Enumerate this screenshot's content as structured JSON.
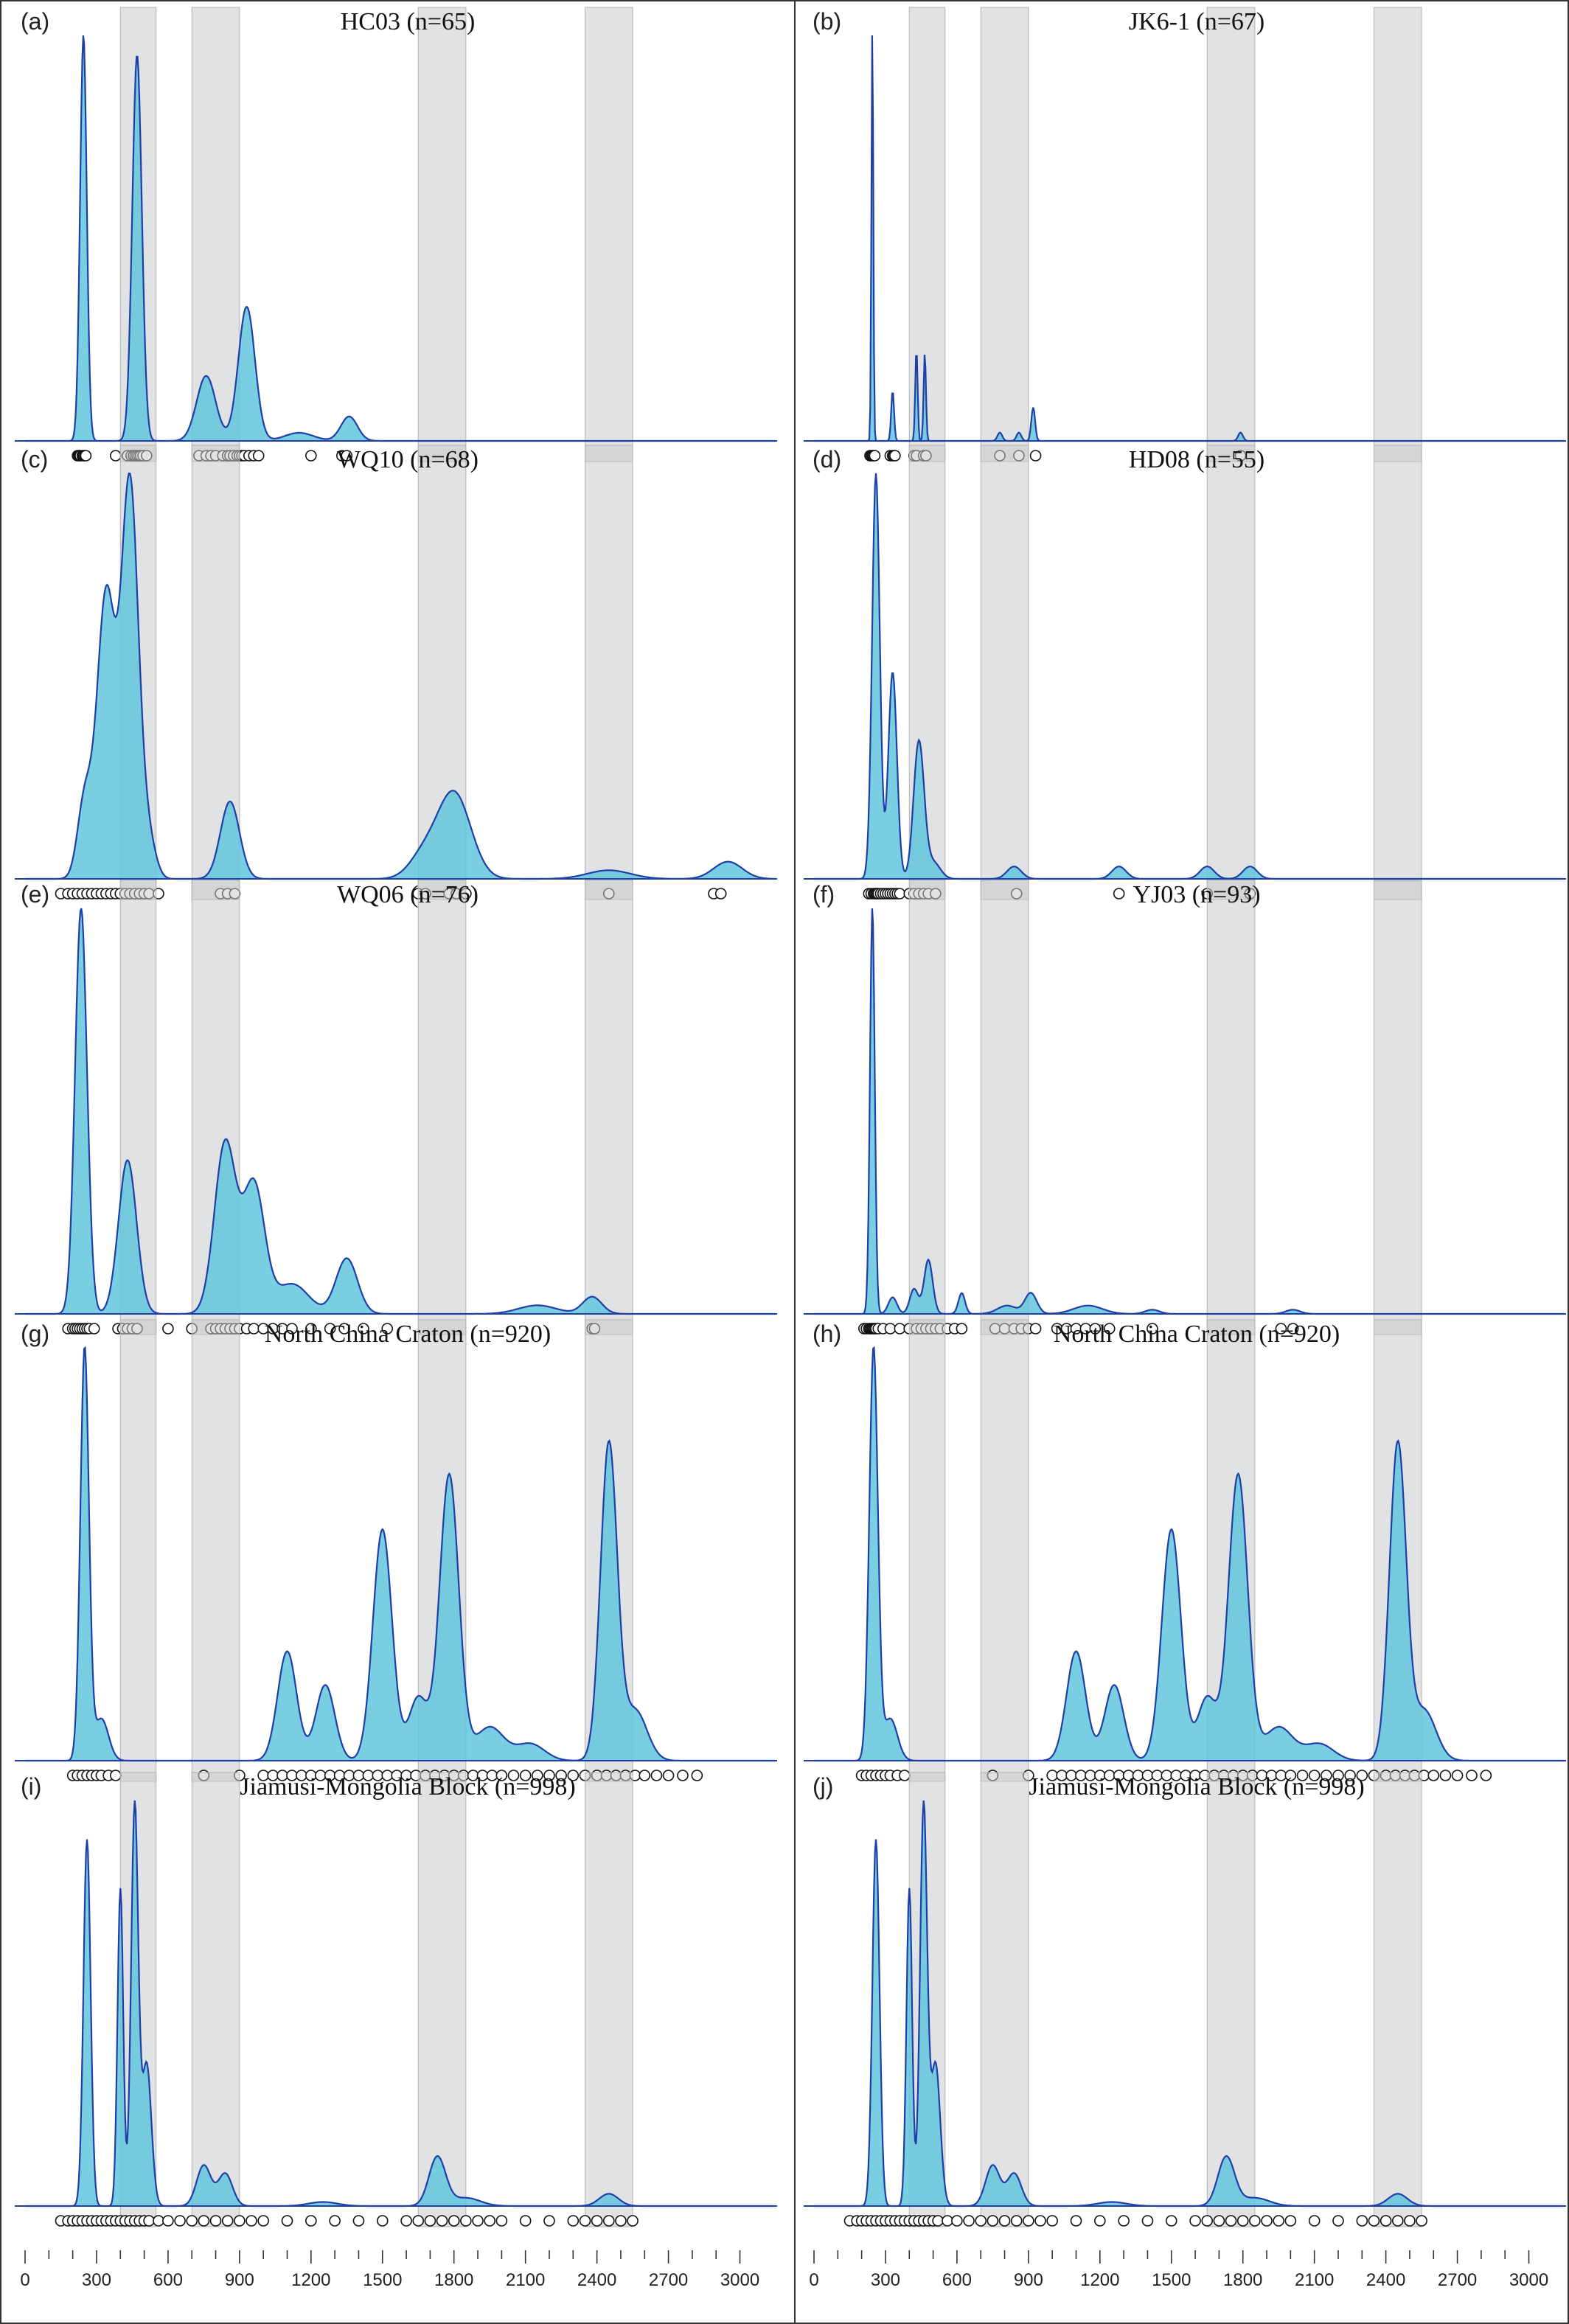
{
  "figure": {
    "x_tick_labels": [
      "0",
      "300",
      "600",
      "900",
      "1200",
      "1500",
      "1800",
      "2100",
      "2400",
      "2700",
      "3000"
    ],
    "colors": {
      "fill": "#62c6dc",
      "line": "#1f3fa8",
      "band": "#c8cacc",
      "marker_stroke": "#111111"
    }
  },
  "chart_data": [
    {
      "id": "a",
      "label": "(a)",
      "title": "HC03 (n=65)",
      "type": "area",
      "xlim": [
        0,
        3150
      ],
      "peaks": [
        [
          245,
          1.0,
          14
        ],
        [
          470,
          0.95,
          20
        ],
        [
          760,
          0.16,
          40
        ],
        [
          930,
          0.33,
          35
        ],
        [
          1150,
          0.02,
          60
        ],
        [
          1360,
          0.06,
          35
        ]
      ],
      "ages": [
        220,
        225,
        228,
        232,
        240,
        245,
        250,
        255,
        380,
        430,
        445,
        455,
        462,
        470,
        478,
        485,
        495,
        510,
        730,
        760,
        780,
        800,
        830,
        850,
        860,
        875,
        890,
        900,
        910,
        920,
        940,
        960,
        980,
        1200,
        1330,
        1350
      ]
    },
    {
      "id": "b",
      "label": "(b)",
      "title": "JK6-1 (n=67)",
      "type": "area",
      "xlim": [
        0,
        3150
      ],
      "peaks": [
        [
          245,
          1.0,
          4
        ],
        [
          330,
          0.12,
          6
        ],
        [
          430,
          0.22,
          5
        ],
        [
          465,
          0.21,
          5
        ],
        [
          780,
          0.02,
          10
        ],
        [
          860,
          0.02,
          10
        ],
        [
          920,
          0.08,
          8
        ],
        [
          1790,
          0.02,
          10
        ]
      ],
      "ages": [
        235,
        240,
        245,
        250,
        255,
        320,
        330,
        335,
        340,
        420,
        430,
        460,
        470,
        780,
        860,
        930,
        1790
      ]
    },
    {
      "id": "c",
      "label": "(c)",
      "title": "WQ10 (n=68)",
      "type": "area",
      "xlim": [
        0,
        3150
      ],
      "peaks": [
        [
          250,
          0.18,
          30
        ],
        [
          340,
          0.66,
          38
        ],
        [
          440,
          0.92,
          36
        ],
        [
          520,
          0.08,
          30
        ],
        [
          860,
          0.18,
          40
        ],
        [
          1670,
          0.05,
          60
        ],
        [
          1800,
          0.2,
          70
        ],
        [
          2450,
          0.02,
          90
        ],
        [
          2950,
          0.04,
          60
        ]
      ],
      "ages": [
        150,
        180,
        200,
        220,
        240,
        260,
        280,
        300,
        320,
        340,
        360,
        380,
        400,
        420,
        440,
        460,
        480,
        500,
        520,
        560,
        820,
        850,
        880,
        1650,
        1680,
        1780,
        1810,
        1850,
        2450,
        2890,
        2920
      ]
    },
    {
      "id": "d",
      "label": "(d)",
      "title": "HD08 (n=55)",
      "type": "area",
      "xlim": [
        0,
        3150
      ],
      "peaks": [
        [
          260,
          0.98,
          16
        ],
        [
          330,
          0.5,
          18
        ],
        [
          440,
          0.33,
          22
        ],
        [
          500,
          0.04,
          30
        ],
        [
          840,
          0.03,
          30
        ],
        [
          1280,
          0.03,
          30
        ],
        [
          1650,
          0.03,
          30
        ],
        [
          1830,
          0.03,
          30
        ]
      ],
      "ages": [
        230,
        240,
        250,
        255,
        260,
        265,
        270,
        280,
        290,
        300,
        310,
        320,
        330,
        340,
        350,
        360,
        400,
        420,
        440,
        460,
        480,
        510,
        850,
        1280,
        1650,
        1830
      ]
    },
    {
      "id": "e",
      "label": "(e)",
      "title": "WQ06 (n=76)",
      "type": "area",
      "xlim": [
        0,
        3150
      ],
      "peaks": [
        [
          235,
          0.95,
          25
        ],
        [
          430,
          0.36,
          38
        ],
        [
          840,
          0.4,
          45
        ],
        [
          960,
          0.3,
          45
        ],
        [
          1120,
          0.07,
          70
        ],
        [
          1350,
          0.13,
          45
        ],
        [
          2150,
          0.02,
          80
        ],
        [
          2380,
          0.04,
          40
        ]
      ],
      "ages": [
        180,
        200,
        210,
        220,
        230,
        240,
        250,
        260,
        270,
        290,
        390,
        410,
        430,
        450,
        470,
        600,
        700,
        780,
        800,
        820,
        840,
        860,
        880,
        900,
        930,
        960,
        1000,
        1040,
        1080,
        1120,
        1200,
        1280,
        1340,
        1420,
        1520,
        2380,
        2390
      ]
    },
    {
      "id": "f",
      "label": "(f)",
      "title": "YJ03 (n=93)",
      "type": "area",
      "xlim": [
        0,
        3150
      ],
      "peaks": [
        [
          245,
          0.98,
          10
        ],
        [
          330,
          0.04,
          18
        ],
        [
          420,
          0.06,
          18
        ],
        [
          480,
          0.13,
          18
        ],
        [
          620,
          0.05,
          14
        ],
        [
          810,
          0.02,
          40
        ],
        [
          910,
          0.05,
          25
        ],
        [
          1150,
          0.02,
          60
        ],
        [
          1420,
          0.01,
          30
        ],
        [
          2010,
          0.01,
          30
        ]
      ],
      "ages": [
        210,
        220,
        230,
        235,
        240,
        245,
        250,
        255,
        260,
        270,
        290,
        320,
        360,
        400,
        430,
        450,
        470,
        490,
        510,
        530,
        560,
        590,
        620,
        760,
        800,
        840,
        870,
        900,
        930,
        1020,
        1060,
        1100,
        1140,
        1180,
        1240,
        1420,
        1960,
        2010
      ]
    },
    {
      "id": "g",
      "label": "(g)",
      "title": "North China Craton (n=920)",
      "type": "area",
      "xlim": [
        0,
        3150
      ],
      "peaks": [
        [
          250,
          0.98,
          18
        ],
        [
          320,
          0.1,
          30
        ],
        [
          1100,
          0.26,
          40
        ],
        [
          1260,
          0.18,
          40
        ],
        [
          1500,
          0.55,
          40
        ],
        [
          1650,
          0.15,
          40
        ],
        [
          1780,
          0.68,
          40
        ],
        [
          1950,
          0.08,
          60
        ],
        [
          2120,
          0.04,
          60
        ],
        [
          2450,
          0.75,
          35
        ],
        [
          2560,
          0.12,
          50
        ]
      ],
      "ages": [
        200,
        220,
        240,
        260,
        280,
        300,
        320,
        350,
        380,
        750,
        900,
        1000,
        1040,
        1080,
        1120,
        1160,
        1200,
        1240,
        1280,
        1320,
        1360,
        1400,
        1440,
        1480,
        1520,
        1560,
        1600,
        1640,
        1680,
        1720,
        1760,
        1800,
        1840,
        1880,
        1920,
        1960,
        2000,
        2050,
        2100,
        2150,
        2200,
        2250,
        2300,
        2350,
        2400,
        2440,
        2480,
        2520,
        2560,
        2600,
        2650,
        2700,
        2760,
        2820
      ]
    },
    {
      "id": "h",
      "label": "(h)",
      "title": "North China Craton (n=920)",
      "type": "area",
      "xlim": [
        0,
        3150
      ],
      "peaks": [
        [
          250,
          0.98,
          18
        ],
        [
          320,
          0.1,
          30
        ],
        [
          1100,
          0.26,
          40
        ],
        [
          1260,
          0.18,
          40
        ],
        [
          1500,
          0.55,
          40
        ],
        [
          1650,
          0.15,
          40
        ],
        [
          1780,
          0.68,
          40
        ],
        [
          1950,
          0.08,
          60
        ],
        [
          2120,
          0.04,
          60
        ],
        [
          2450,
          0.75,
          35
        ],
        [
          2560,
          0.12,
          50
        ]
      ],
      "ages": [
        200,
        220,
        240,
        260,
        280,
        300,
        320,
        350,
        380,
        750,
        900,
        1000,
        1040,
        1080,
        1120,
        1160,
        1200,
        1240,
        1280,
        1320,
        1360,
        1400,
        1440,
        1480,
        1520,
        1560,
        1600,
        1640,
        1680,
        1720,
        1760,
        1800,
        1840,
        1880,
        1920,
        1960,
        2000,
        2050,
        2100,
        2150,
        2200,
        2250,
        2300,
        2350,
        2400,
        2440,
        2480,
        2520,
        2560,
        2600,
        2650,
        2700,
        2760,
        2820
      ]
    },
    {
      "id": "i",
      "label": "(i)",
      "title": "Jiamusi-Mongolia Block (n=998)",
      "type": "area",
      "xlim": [
        0,
        3150
      ],
      "peaks": [
        [
          260,
          0.9,
          15
        ],
        [
          400,
          0.78,
          12
        ],
        [
          460,
          0.98,
          15
        ],
        [
          510,
          0.35,
          20
        ],
        [
          750,
          0.1,
          30
        ],
        [
          840,
          0.08,
          30
        ],
        [
          1250,
          0.01,
          60
        ],
        [
          1730,
          0.12,
          35
        ],
        [
          1850,
          0.02,
          60
        ],
        [
          2450,
          0.03,
          40
        ]
      ],
      "ages": [
        150,
        180,
        200,
        220,
        240,
        260,
        280,
        300,
        320,
        340,
        360,
        380,
        400,
        420,
        440,
        460,
        480,
        500,
        520,
        560,
        600,
        650,
        700,
        750,
        800,
        850,
        900,
        950,
        1000,
        1100,
        1200,
        1300,
        1400,
        1500,
        1600,
        1650,
        1700,
        1750,
        1800,
        1850,
        1900,
        1950,
        2000,
        2100,
        2200,
        2300,
        2350,
        2400,
        2450,
        2500,
        2550
      ]
    },
    {
      "id": "j",
      "label": "(j)",
      "title": "Jiamusi-Mongolia Block (n=998)",
      "type": "area",
      "xlim": [
        0,
        3150
      ],
      "peaks": [
        [
          260,
          0.9,
          15
        ],
        [
          400,
          0.78,
          12
        ],
        [
          460,
          0.98,
          15
        ],
        [
          510,
          0.35,
          20
        ],
        [
          750,
          0.1,
          30
        ],
        [
          840,
          0.08,
          30
        ],
        [
          1250,
          0.01,
          60
        ],
        [
          1730,
          0.12,
          35
        ],
        [
          1850,
          0.02,
          60
        ],
        [
          2450,
          0.03,
          40
        ]
      ],
      "ages": [
        150,
        180,
        200,
        220,
        240,
        260,
        280,
        300,
        320,
        340,
        360,
        380,
        400,
        420,
        440,
        460,
        480,
        500,
        520,
        560,
        600,
        650,
        700,
        750,
        800,
        850,
        900,
        950,
        1000,
        1100,
        1200,
        1300,
        1400,
        1500,
        1600,
        1650,
        1700,
        1750,
        1800,
        1850,
        1900,
        1950,
        2000,
        2100,
        2200,
        2300,
        2350,
        2400,
        2450,
        2500,
        2550
      ]
    }
  ],
  "bands": [
    [
      400,
      550
    ],
    [
      700,
      900
    ],
    [
      1650,
      1850
    ],
    [
      2350,
      2550
    ]
  ]
}
